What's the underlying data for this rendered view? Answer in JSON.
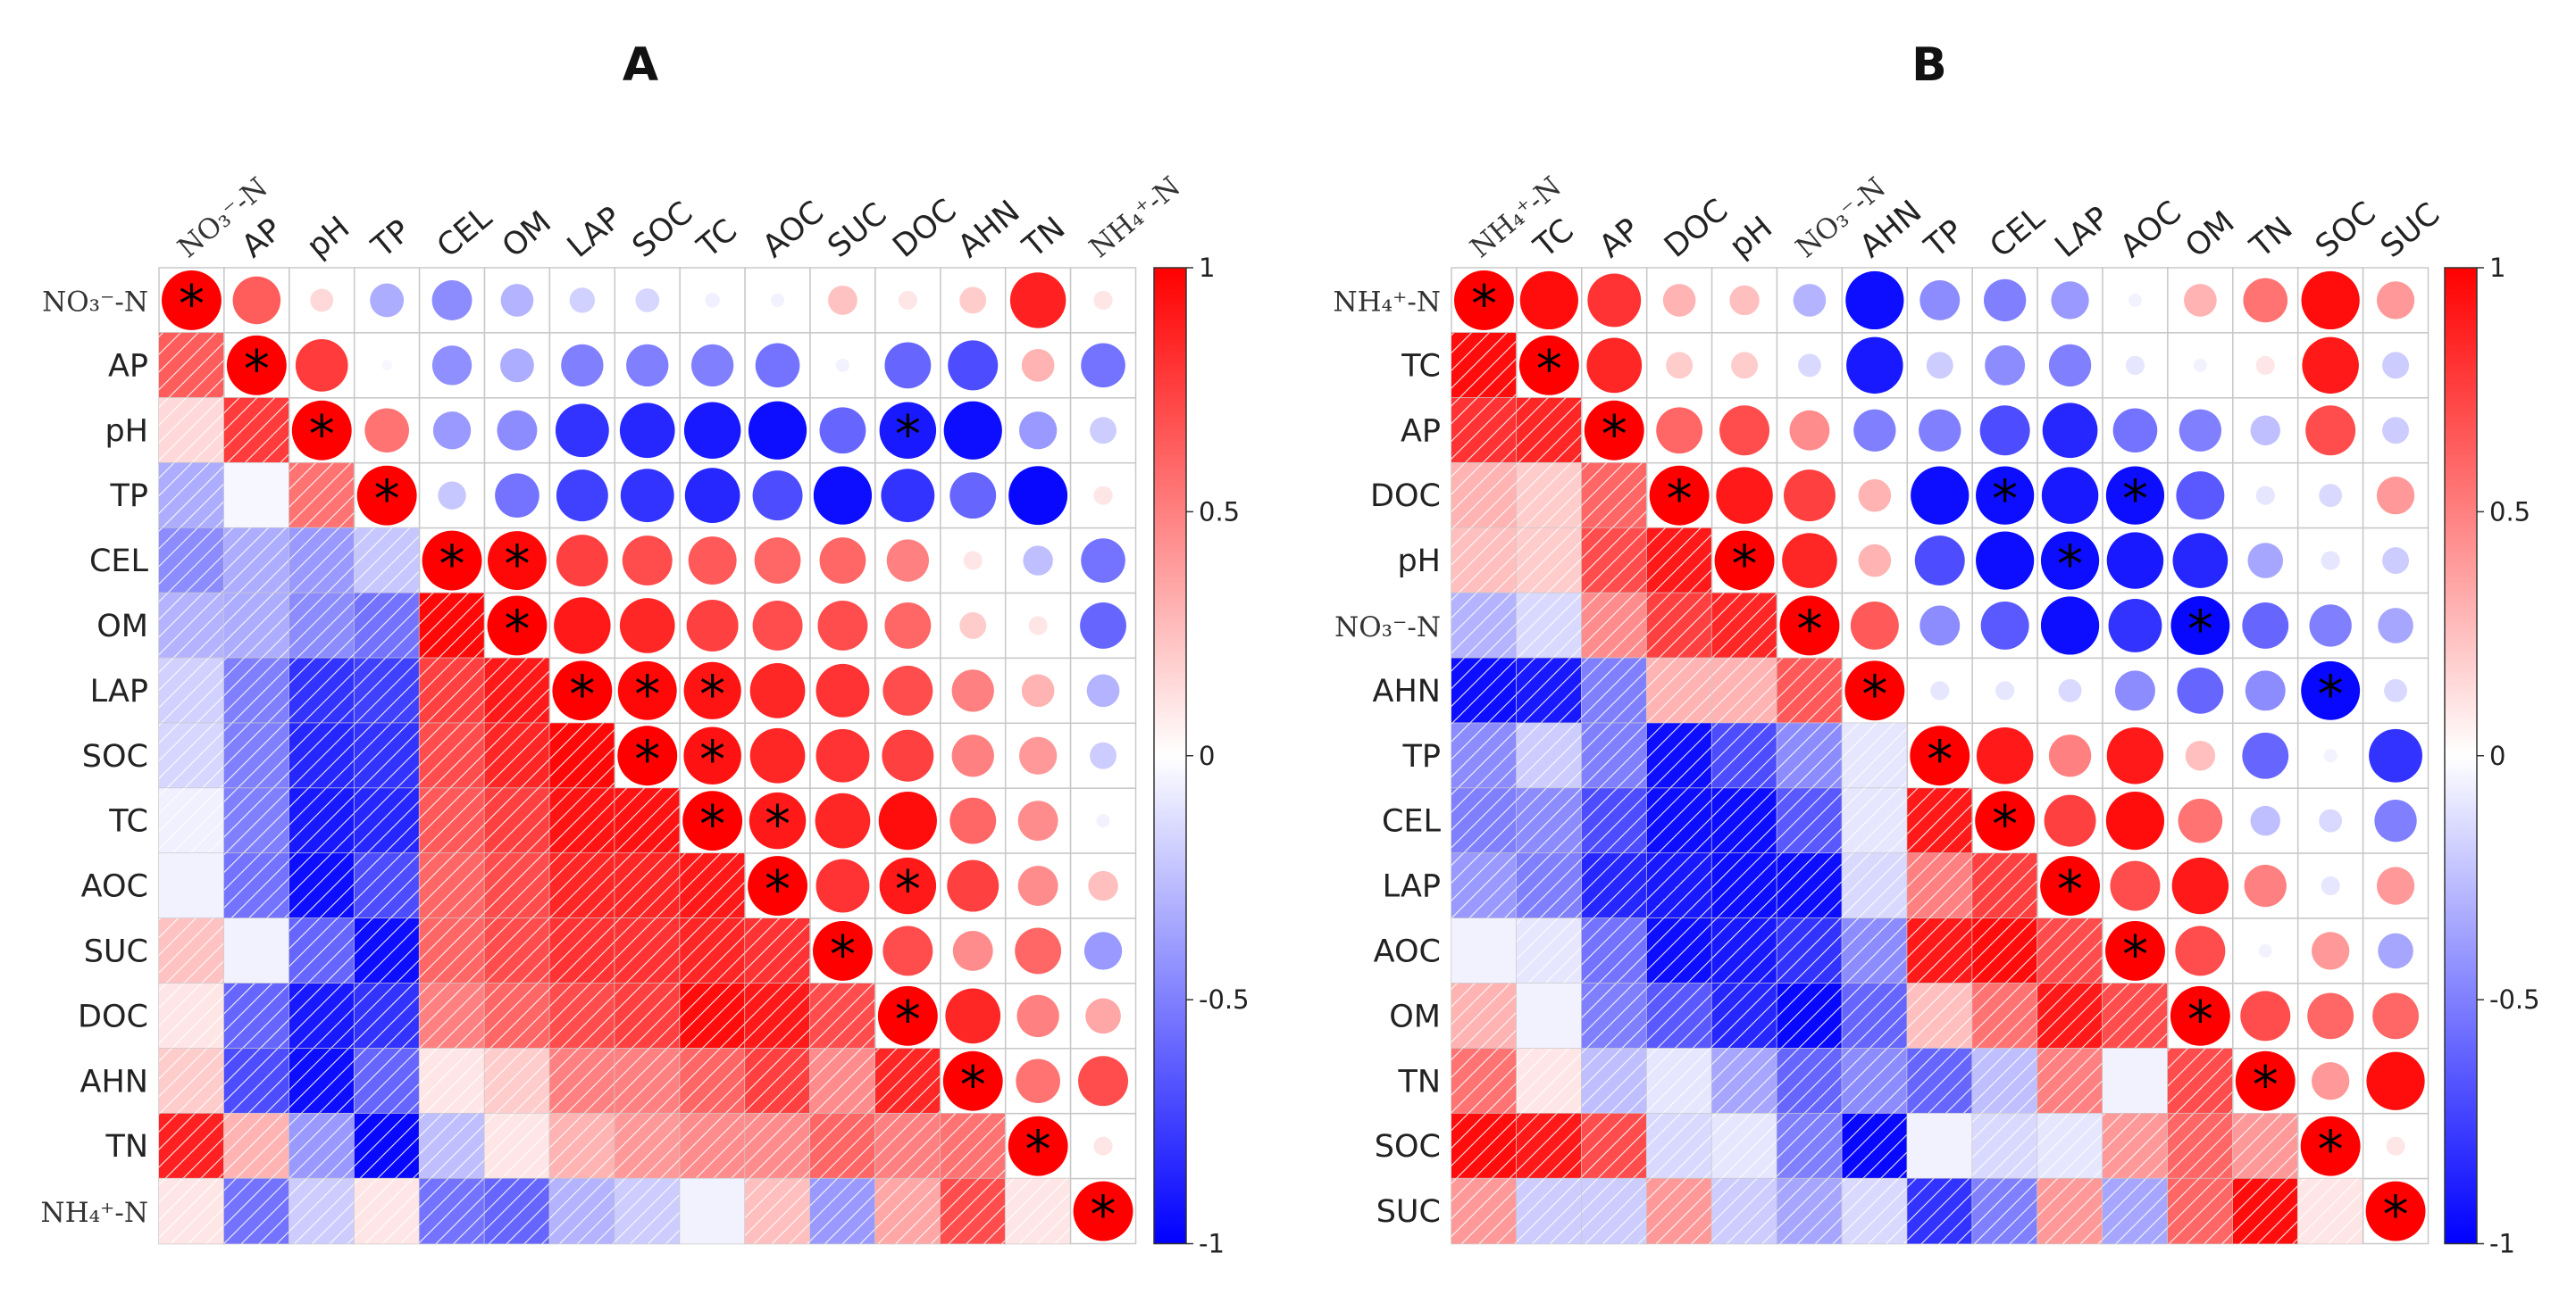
{
  "chart_data": [
    {
      "type": "heatmap",
      "title": "A",
      "variables": [
        "NO₃⁻-N",
        "AP",
        "pH",
        "TP",
        "CEL",
        "OM",
        "LAP",
        "SOC",
        "TC",
        "AOC",
        "SUC",
        "DOC",
        "AHN",
        "TN",
        "NH₄⁺-N"
      ],
      "matrix": [
        [
          1,
          0.64,
          0.15,
          -0.32,
          -0.45,
          -0.3,
          -0.18,
          -0.16,
          -0.06,
          -0.05,
          0.24,
          0.1,
          0.2,
          0.87,
          0.1
        ],
        [
          0.64,
          1,
          0.77,
          -0.03,
          -0.44,
          -0.32,
          -0.5,
          -0.5,
          -0.5,
          -0.55,
          -0.05,
          -0.6,
          -0.7,
          0.3,
          -0.55
        ],
        [
          0.15,
          0.77,
          1,
          0.55,
          -0.4,
          -0.45,
          -0.8,
          -0.85,
          -0.9,
          -0.95,
          -0.6,
          -0.9,
          -0.95,
          -0.4,
          -0.2
        ],
        [
          -0.32,
          -0.03,
          0.55,
          1,
          -0.22,
          -0.55,
          -0.75,
          -0.8,
          -0.85,
          -0.7,
          -0.95,
          -0.8,
          -0.6,
          -0.97,
          0.1
        ],
        [
          -0.45,
          -0.32,
          -0.4,
          -0.22,
          1,
          0.97,
          0.75,
          0.7,
          0.65,
          0.6,
          0.6,
          0.5,
          0.1,
          -0.25,
          -0.55
        ],
        [
          -0.3,
          -0.32,
          -0.45,
          -0.55,
          0.97,
          1,
          0.9,
          0.85,
          0.75,
          0.7,
          0.7,
          0.6,
          0.2,
          0.1,
          -0.6
        ],
        [
          -0.18,
          -0.5,
          -0.8,
          -0.75,
          0.75,
          0.9,
          1,
          0.97,
          0.92,
          0.85,
          0.8,
          0.7,
          0.5,
          0.3,
          -0.3
        ],
        [
          -0.16,
          -0.5,
          -0.85,
          -0.8,
          0.7,
          0.85,
          0.97,
          1,
          0.93,
          0.85,
          0.8,
          0.75,
          0.5,
          0.4,
          -0.2
        ],
        [
          -0.06,
          -0.5,
          -0.9,
          -0.85,
          0.65,
          0.75,
          0.92,
          0.93,
          1,
          0.9,
          0.85,
          0.95,
          0.6,
          0.45,
          -0.05
        ],
        [
          -0.05,
          -0.55,
          -0.95,
          -0.7,
          0.6,
          0.7,
          0.85,
          0.85,
          0.9,
          1,
          0.8,
          0.9,
          0.75,
          0.45,
          0.25
        ],
        [
          0.24,
          -0.05,
          -0.6,
          -0.95,
          0.6,
          0.7,
          0.8,
          0.8,
          0.85,
          0.8,
          1,
          0.7,
          0.45,
          0.6,
          -0.4
        ],
        [
          0.1,
          -0.6,
          -0.9,
          -0.8,
          0.5,
          0.6,
          0.7,
          0.75,
          0.95,
          0.9,
          0.7,
          1,
          0.85,
          0.5,
          0.35
        ],
        [
          0.2,
          -0.7,
          -0.95,
          -0.6,
          0.1,
          0.2,
          0.5,
          0.5,
          0.6,
          0.75,
          0.45,
          0.85,
          1,
          0.55,
          0.7
        ],
        [
          0.87,
          0.3,
          -0.4,
          -0.97,
          -0.25,
          0.1,
          0.3,
          0.4,
          0.45,
          0.45,
          0.6,
          0.5,
          0.55,
          1,
          0.1
        ],
        [
          0.1,
          -0.55,
          -0.2,
          0.1,
          -0.55,
          -0.6,
          -0.3,
          -0.2,
          -0.05,
          0.25,
          -0.4,
          0.35,
          0.7,
          0.1,
          1
        ]
      ],
      "significant": [
        [
          0,
          0
        ],
        [
          1,
          1
        ],
        [
          2,
          2
        ],
        [
          3,
          3
        ],
        [
          4,
          4
        ],
        [
          4,
          5
        ],
        [
          5,
          5
        ],
        [
          6,
          6
        ],
        [
          6,
          7
        ],
        [
          6,
          8
        ],
        [
          7,
          7
        ],
        [
          7,
          8
        ],
        [
          8,
          8
        ],
        [
          8,
          9
        ],
        [
          9,
          9
        ],
        [
          9,
          11
        ],
        [
          10,
          10
        ],
        [
          11,
          11
        ],
        [
          12,
          12
        ],
        [
          13,
          13
        ],
        [
          14,
          14
        ],
        [
          2,
          11
        ]
      ],
      "colorbar": {
        "ticks": [
          "1",
          "0.5",
          "0",
          "-0.5",
          "-1"
        ],
        "range": [
          -1,
          1
        ]
      }
    },
    {
      "type": "heatmap",
      "title": "B",
      "variables": [
        "NH₄⁺-N",
        "TC",
        "AP",
        "DOC",
        "pH",
        "NO₃⁻-N",
        "AHN",
        "TP",
        "CEL",
        "LAP",
        "AOC",
        "OM",
        "TN",
        "SOC",
        "SUC"
      ],
      "matrix": [
        [
          1,
          0.95,
          0.8,
          0.3,
          0.25,
          -0.3,
          -0.95,
          -0.45,
          -0.5,
          -0.4,
          -0.05,
          0.3,
          0.55,
          0.95,
          0.4
        ],
        [
          0.95,
          1,
          0.85,
          0.2,
          0.2,
          -0.15,
          -0.9,
          -0.2,
          -0.45,
          -0.5,
          -0.1,
          -0.05,
          0.1,
          0.9,
          -0.2
        ],
        [
          0.8,
          0.85,
          1,
          0.6,
          0.7,
          0.45,
          -0.5,
          -0.5,
          -0.7,
          -0.85,
          -0.55,
          -0.5,
          -0.25,
          0.7,
          -0.2
        ],
        [
          0.3,
          0.2,
          0.6,
          1,
          0.9,
          0.75,
          0.3,
          -0.95,
          -0.95,
          -0.9,
          -0.95,
          -0.65,
          -0.1,
          -0.15,
          0.4
        ],
        [
          0.25,
          0.2,
          0.7,
          0.9,
          1,
          0.85,
          0.3,
          -0.7,
          -0.95,
          -0.95,
          -0.9,
          -0.85,
          -0.35,
          -0.1,
          -0.2
        ],
        [
          -0.3,
          -0.15,
          0.45,
          0.75,
          0.85,
          1,
          0.65,
          -0.45,
          -0.65,
          -0.95,
          -0.8,
          -0.97,
          -0.6,
          -0.5,
          -0.35
        ],
        [
          -0.95,
          -0.9,
          -0.5,
          0.3,
          0.3,
          0.65,
          1,
          -0.1,
          -0.1,
          -0.15,
          -0.45,
          -0.6,
          -0.45,
          -0.97,
          -0.15
        ],
        [
          -0.45,
          -0.2,
          -0.5,
          -0.95,
          -0.7,
          -0.45,
          -0.1,
          1,
          0.9,
          0.5,
          0.9,
          0.25,
          -0.6,
          -0.05,
          -0.8
        ],
        [
          -0.5,
          -0.45,
          -0.7,
          -0.95,
          -0.95,
          -0.65,
          -0.1,
          0.9,
          1,
          0.75,
          0.95,
          0.55,
          -0.25,
          -0.15,
          -0.5
        ],
        [
          -0.4,
          -0.5,
          -0.85,
          -0.9,
          -0.95,
          -0.95,
          -0.15,
          0.5,
          0.75,
          1,
          0.7,
          0.9,
          0.5,
          -0.1,
          0.4
        ],
        [
          -0.05,
          -0.1,
          -0.55,
          -0.95,
          -0.9,
          -0.8,
          -0.45,
          0.9,
          0.95,
          0.7,
          1,
          0.7,
          -0.05,
          0.4,
          -0.35
        ],
        [
          0.3,
          -0.05,
          -0.5,
          -0.65,
          -0.85,
          -0.97,
          -0.6,
          0.25,
          0.55,
          0.9,
          0.7,
          1,
          0.7,
          0.6,
          0.6
        ],
        [
          0.55,
          0.1,
          -0.25,
          -0.1,
          -0.35,
          -0.6,
          -0.45,
          -0.6,
          -0.25,
          0.5,
          -0.05,
          0.7,
          1,
          0.4,
          0.95
        ],
        [
          0.95,
          0.9,
          0.7,
          -0.15,
          -0.1,
          -0.5,
          -0.97,
          -0.05,
          -0.15,
          -0.1,
          0.4,
          0.6,
          0.4,
          1,
          0.1
        ],
        [
          0.4,
          -0.2,
          -0.2,
          0.4,
          -0.2,
          -0.35,
          -0.15,
          -0.8,
          -0.5,
          0.4,
          -0.35,
          0.6,
          0.95,
          0.1,
          1
        ]
      ],
      "significant": [
        [
          0,
          0
        ],
        [
          1,
          1
        ],
        [
          2,
          2
        ],
        [
          3,
          3
        ],
        [
          3,
          8
        ],
        [
          3,
          10
        ],
        [
          4,
          4
        ],
        [
          4,
          9
        ],
        [
          5,
          5
        ],
        [
          5,
          11
        ],
        [
          6,
          6
        ],
        [
          6,
          13
        ],
        [
          7,
          7
        ],
        [
          8,
          8
        ],
        [
          9,
          9
        ],
        [
          10,
          10
        ],
        [
          11,
          11
        ],
        [
          12,
          12
        ],
        [
          13,
          13
        ],
        [
          14,
          14
        ]
      ],
      "colorbar": {
        "ticks": [
          "1",
          "0.5",
          "0",
          "-0.5",
          "-1"
        ],
        "range": [
          -1,
          1
        ]
      }
    }
  ]
}
